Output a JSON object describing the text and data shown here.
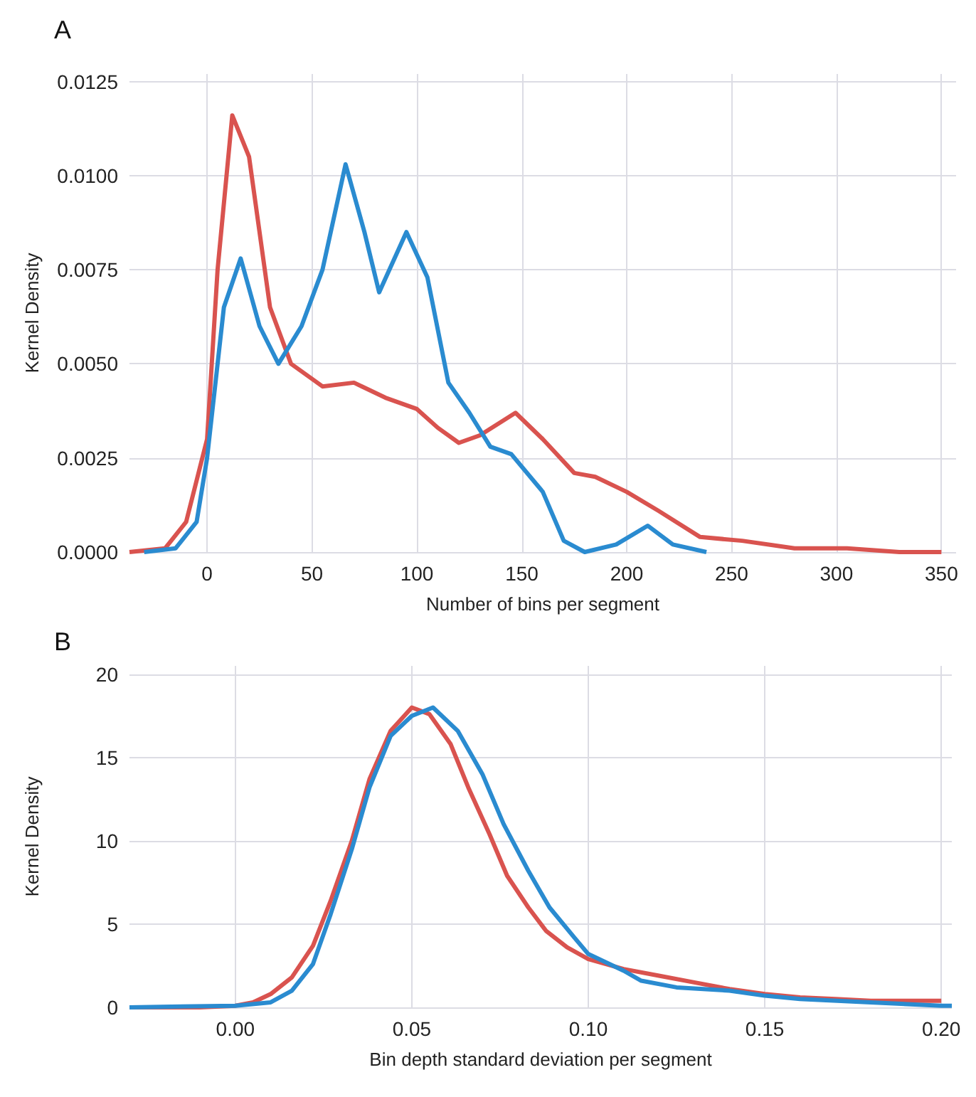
{
  "chart_data": [
    {
      "type": "line",
      "annotations": [
        "A"
      ],
      "xlabel": "Number of bins per segment",
      "ylabel": "Kernel Density",
      "xlim": [
        -37,
        357
      ],
      "xticks": [
        0,
        50,
        100,
        150,
        200,
        250,
        300,
        350
      ],
      "ylim": [
        0,
        0.0127
      ],
      "yticks": [
        {
          "value": 0,
          "label": "0.0000"
        },
        {
          "value": 0.0025,
          "label": "0.0025"
        },
        {
          "value": 0.005,
          "label": "0.0050"
        },
        {
          "value": 0.0075,
          "label": "0.0075"
        },
        {
          "value": 0.01,
          "label": "0.0100"
        },
        {
          "value": 0.0125,
          "label": "0.0125"
        }
      ],
      "grid": true,
      "marker": "none",
      "line_style": "solid",
      "series": [
        {
          "color": "#d9534f",
          "x": [
            -37,
            -20,
            -10,
            0,
            5,
            12,
            20,
            30,
            40,
            55,
            70,
            85,
            100,
            110,
            120,
            130,
            147,
            160,
            175,
            185,
            200,
            215,
            235,
            255,
            280,
            305,
            330,
            350
          ],
          "values": [
            0,
            0.0001,
            0.0008,
            0.003,
            0.0075,
            0.0116,
            0.0105,
            0.0065,
            0.005,
            0.0044,
            0.0045,
            0.0041,
            0.0038,
            0.0033,
            0.0029,
            0.0031,
            0.0037,
            0.003,
            0.0021,
            0.002,
            0.0016,
            0.0011,
            0.0004,
            0.0003,
            0.0001,
            0.0001,
            0,
            0
          ]
        },
        {
          "color": "#2a8bd0",
          "x": [
            -30,
            -15,
            -5,
            0,
            8,
            16,
            25,
            34,
            45,
            55,
            66,
            75,
            82,
            95,
            105,
            115,
            125,
            135,
            145,
            160,
            170,
            180,
            195,
            210,
            222,
            238
          ],
          "values": [
            0,
            0.0001,
            0.0008,
            0.0025,
            0.0065,
            0.0078,
            0.006,
            0.005,
            0.006,
            0.0075,
            0.0103,
            0.0085,
            0.0069,
            0.0085,
            0.0073,
            0.0045,
            0.0037,
            0.0028,
            0.0026,
            0.0016,
            0.0003,
            0,
            0.0002,
            0.0007,
            0.0002,
            0
          ]
        }
      ]
    },
    {
      "type": "line",
      "annotations": [
        "B"
      ],
      "xlabel": "Bin depth standard deviation per segment",
      "ylabel": "Kernel Density",
      "xlim": [
        -0.03,
        0.203
      ],
      "xticks": [
        {
          "value": 0,
          "label": "0.00"
        },
        {
          "value": 0.05,
          "label": "0.05"
        },
        {
          "value": 0.1,
          "label": "0.10"
        },
        {
          "value": 0.15,
          "label": "0.15"
        },
        {
          "value": 0.2,
          "label": "0.20"
        }
      ],
      "ylim": [
        0,
        20.5
      ],
      "yticks": [
        0,
        5,
        10,
        15,
        20
      ],
      "grid": true,
      "marker": "none",
      "line_style": "solid",
      "series": [
        {
          "color": "#d9534f",
          "x": [
            -0.03,
            -0.01,
            0,
            0.005,
            0.01,
            0.016,
            0.022,
            0.027,
            0.033,
            0.038,
            0.044,
            0.05,
            0.055,
            0.061,
            0.066,
            0.072,
            0.077,
            0.083,
            0.088,
            0.094,
            0.1,
            0.11,
            0.12,
            0.13,
            0.14,
            0.15,
            0.16,
            0.17,
            0.18,
            0.2
          ],
          "values": [
            0,
            0,
            0.1,
            0.3,
            0.8,
            1.8,
            3.7,
            6.4,
            10,
            13.7,
            16.6,
            18,
            17.6,
            15.8,
            13.2,
            10.4,
            7.9,
            6,
            4.6,
            3.6,
            2.9,
            2.3,
            1.9,
            1.5,
            1.1,
            0.8,
            0.6,
            0.5,
            0.4,
            0.4
          ]
        },
        {
          "color": "#2a8bd0",
          "x": [
            -0.03,
            0,
            0.01,
            0.016,
            0.022,
            0.027,
            0.033,
            0.038,
            0.044,
            0.05,
            0.056,
            0.063,
            0.07,
            0.076,
            0.083,
            0.089,
            0.096,
            0.1,
            0.11,
            0.115,
            0.125,
            0.14,
            0.15,
            0.16,
            0.18,
            0.2,
            0.203
          ],
          "values": [
            0,
            0.1,
            0.3,
            1,
            2.6,
            5.6,
            9.5,
            13.2,
            16.3,
            17.5,
            18,
            16.6,
            14,
            11,
            8.2,
            6,
            4.2,
            3.2,
            2.2,
            1.6,
            1.2,
            1,
            0.7,
            0.5,
            0.3,
            0.1,
            0.1
          ]
        }
      ]
    }
  ]
}
